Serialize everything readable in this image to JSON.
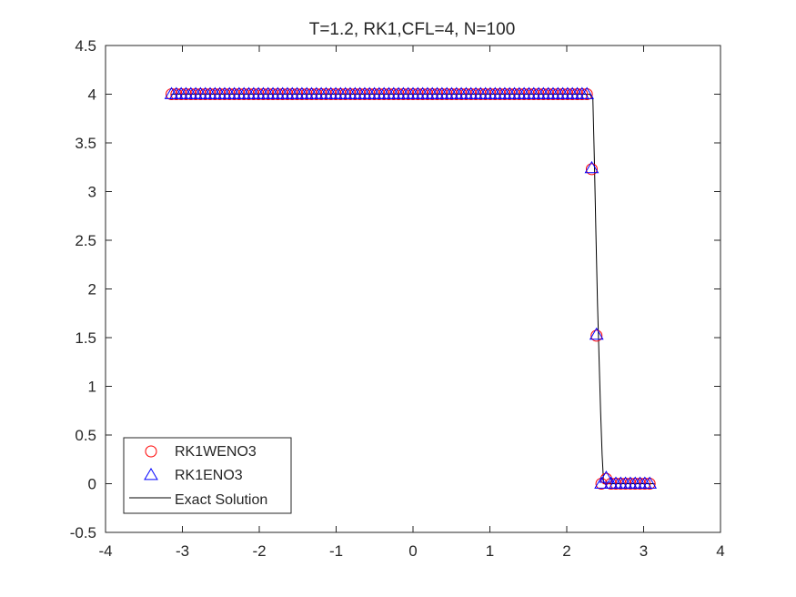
{
  "chart_data": {
    "type": "line",
    "title": "T=1.2, RK1,CFL=4, N=100",
    "xlabel": "",
    "ylabel": "",
    "xlim": [
      -4,
      4
    ],
    "ylim": [
      -0.5,
      4.5
    ],
    "xticks": [
      -4,
      -3,
      -2,
      -1,
      0,
      1,
      2,
      3,
      4
    ],
    "yticks": [
      -0.5,
      0,
      0.5,
      1,
      1.5,
      2,
      2.5,
      3,
      3.5,
      4,
      4.5
    ],
    "xtick_labels": [
      "-4",
      "-3",
      "-2",
      "-1",
      "0",
      "1",
      "2",
      "3",
      "4"
    ],
    "ytick_labels": [
      "-0.5",
      "0",
      "0.5",
      "1",
      "1.5",
      "2",
      "2.5",
      "3",
      "3.5",
      "4",
      "4.5"
    ],
    "grid": false,
    "legend_position": "bottom-left",
    "series": [
      {
        "name": "RK1WENO3",
        "marker": "circle",
        "color": "#ff0000",
        "x_range": [
          -3.1416,
          3.0788
        ],
        "points": 100,
        "piecewise": [
          {
            "x_max": 2.3,
            "y": 4.0
          },
          {
            "x": 2.3562,
            "y": 3.23
          },
          {
            "x": 2.419,
            "y": 1.52
          },
          {
            "x": 2.4819,
            "y": 0.05
          },
          {
            "x_min": 2.54,
            "y": 0.0
          }
        ]
      },
      {
        "name": "RK1ENO3",
        "marker": "triangle",
        "color": "#0000ff",
        "x_range": [
          -3.1416,
          3.0788
        ],
        "points": 100,
        "piecewise": [
          {
            "x_max": 2.3,
            "y": 4.0
          },
          {
            "x": 2.3562,
            "y": 3.24
          },
          {
            "x": 2.419,
            "y": 1.53
          },
          {
            "x": 2.4819,
            "y": 0.06
          },
          {
            "x_min": 2.54,
            "y": 0.0
          }
        ]
      },
      {
        "name": "Exact Solution",
        "marker": "none",
        "color": "#000000",
        "x": [
          -3.1416,
          2.3,
          2.34,
          2.36,
          2.38,
          2.4,
          2.42,
          2.44,
          2.46,
          2.48,
          3.1416
        ],
        "y": [
          4.0,
          4.0,
          3.95,
          3.3,
          2.55,
          1.85,
          1.3,
          0.75,
          0.3,
          0.0,
          0.0
        ]
      }
    ]
  },
  "colors": {
    "weno": "#ff0000",
    "eno": "#0000ff",
    "exact": "#000000",
    "axis": "#262626"
  }
}
